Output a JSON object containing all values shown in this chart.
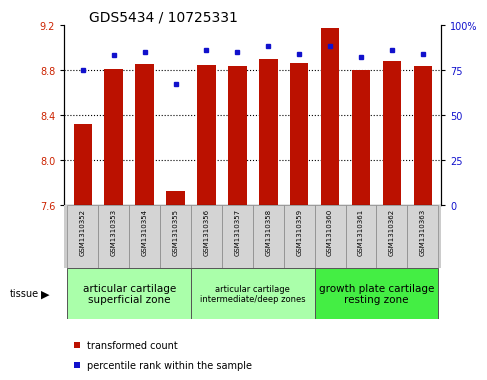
{
  "title": "GDS5434 / 10725331",
  "samples": [
    "GSM1310352",
    "GSM1310353",
    "GSM1310354",
    "GSM1310355",
    "GSM1310356",
    "GSM1310357",
    "GSM1310358",
    "GSM1310359",
    "GSM1310360",
    "GSM1310361",
    "GSM1310362",
    "GSM1310363"
  ],
  "red_values": [
    8.32,
    8.81,
    8.85,
    7.72,
    8.84,
    8.83,
    8.9,
    8.86,
    9.17,
    8.8,
    8.88,
    8.83
  ],
  "blue_values": [
    75,
    83,
    85,
    67,
    86,
    85,
    88,
    84,
    88,
    82,
    86,
    84
  ],
  "ymin": 7.6,
  "ymax": 9.2,
  "yticks": [
    7.6,
    8.0,
    8.4,
    8.8,
    9.2
  ],
  "y2min": 0,
  "y2max": 100,
  "y2ticks": [
    0,
    25,
    50,
    75,
    100
  ],
  "bar_color": "#BB1100",
  "dot_color": "#1111CC",
  "groups": [
    {
      "label": "articular cartilage\nsuperficial zone",
      "start": 0,
      "end": 4,
      "color": "#aaffaa",
      "fontsize": 7.5
    },
    {
      "label": "articular cartilage\nintermediate/deep zones",
      "start": 4,
      "end": 8,
      "color": "#aaffaa",
      "fontsize": 6.0
    },
    {
      "label": "growth plate cartilage\nresting zone",
      "start": 8,
      "end": 12,
      "color": "#44ee44",
      "fontsize": 7.5
    }
  ],
  "legend_items": [
    {
      "color": "#BB1100",
      "label": "transformed count"
    },
    {
      "color": "#1111CC",
      "label": "percentile rank within the sample"
    }
  ],
  "tissue_label": "tissue",
  "ylabel_color": "#CC2200",
  "y2label_color": "#1111CC",
  "title_fontsize": 10,
  "tick_fontsize": 7,
  "bar_width": 0.6
}
